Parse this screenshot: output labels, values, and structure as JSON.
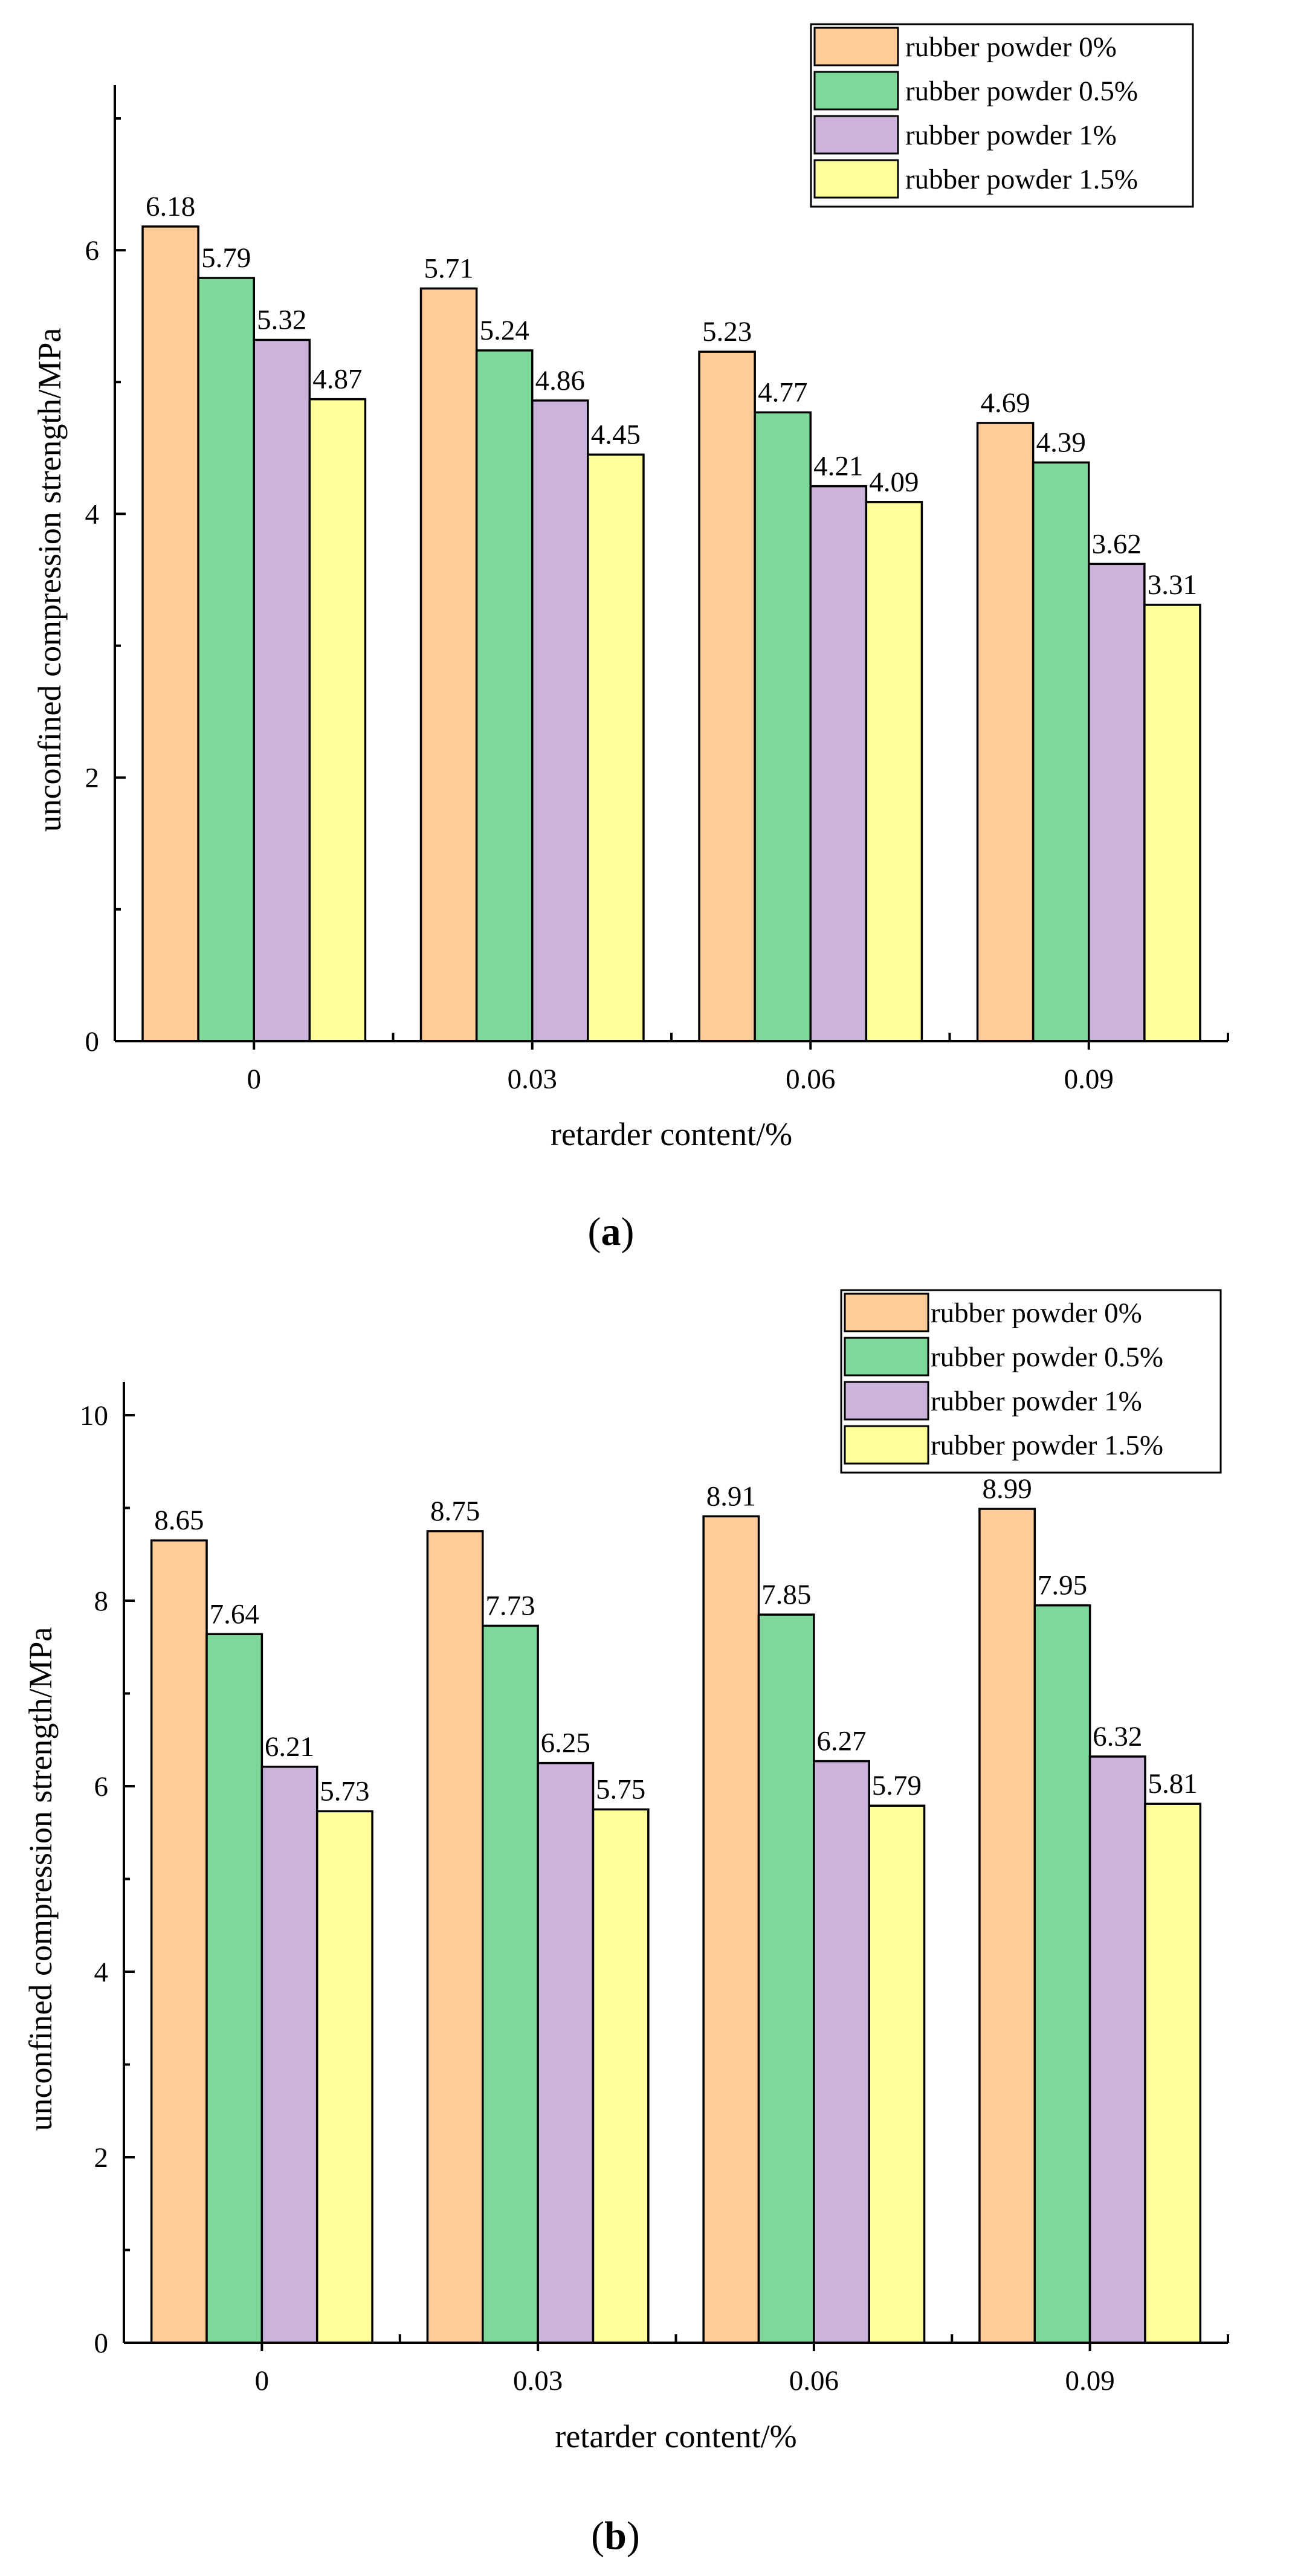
{
  "chart_data": [
    {
      "type": "bar",
      "panel_label": "a",
      "categories": [
        "0",
        "0.03",
        "0.06",
        "0.09"
      ],
      "series": [
        {
          "name": "rubber powder 0%",
          "color": "#FFCC99",
          "values": [
            6.18,
            5.71,
            5.23,
            4.69
          ]
        },
        {
          "name": "rubber powder 0.5%",
          "color": "#7DD89A",
          "values": [
            5.79,
            5.24,
            4.77,
            4.39
          ]
        },
        {
          "name": "rubber powder 1%",
          "color": "#CCB3DB",
          "values": [
            5.32,
            4.86,
            4.21,
            3.62
          ]
        },
        {
          "name": "rubber powder 1.5%",
          "color": "#FFFF99",
          "values": [
            4.87,
            4.45,
            4.09,
            3.31
          ]
        }
      ],
      "data_labels": [
        [
          "6.18",
          "5.71",
          "5.23",
          "4.69"
        ],
        [
          "5.79",
          "5.24",
          "4.77",
          "4.39"
        ],
        [
          "5.32",
          "4.86",
          "4.21",
          "3.62"
        ],
        [
          "4.87",
          "4.45",
          "4.09",
          "3.31"
        ]
      ],
      "xlabel": "retarder content/%",
      "ylabel": "unconfined compression strength/MPa",
      "ylim": [
        0,
        7
      ],
      "yticks": [
        0,
        2,
        4,
        6
      ],
      "ytick_labels": [
        "0",
        "2",
        "4",
        "6"
      ],
      "legend_position": "top-right",
      "grid": false
    },
    {
      "type": "bar",
      "panel_label": "b",
      "categories": [
        "0",
        "0.03",
        "0.06",
        "0.09"
      ],
      "series": [
        {
          "name": "rubber powder 0%",
          "color": "#FFCC99",
          "values": [
            8.65,
            8.75,
            8.91,
            8.99
          ]
        },
        {
          "name": "rubber powder 0.5%",
          "color": "#7DD89A",
          "values": [
            7.64,
            7.73,
            7.85,
            7.95
          ]
        },
        {
          "name": "rubber powder 1%",
          "color": "#CCB3DB",
          "values": [
            6.21,
            6.25,
            6.27,
            6.32
          ]
        },
        {
          "name": "rubber powder 1.5%",
          "color": "#FFFF99",
          "values": [
            5.73,
            5.75,
            5.79,
            5.81
          ]
        }
      ],
      "data_labels": [
        [
          "8.65",
          "8.75",
          "8.91",
          "8.99"
        ],
        [
          "7.64",
          "7.73",
          "7.85",
          "7.95"
        ],
        [
          "6.21",
          "6.25",
          "6.27",
          "6.32"
        ],
        [
          "5.73",
          "5.75",
          "5.79",
          "5.81"
        ]
      ],
      "xlabel": "retarder content/%",
      "ylabel": "unconfined compression strength/MPa",
      "ylim": [
        0,
        10
      ],
      "yticks": [
        0,
        2,
        4,
        6,
        8,
        10
      ],
      "ytick_labels": [
        "0",
        "2",
        "4",
        "6",
        "8",
        "10"
      ],
      "legend_position": "top-right",
      "grid": false
    }
  ]
}
